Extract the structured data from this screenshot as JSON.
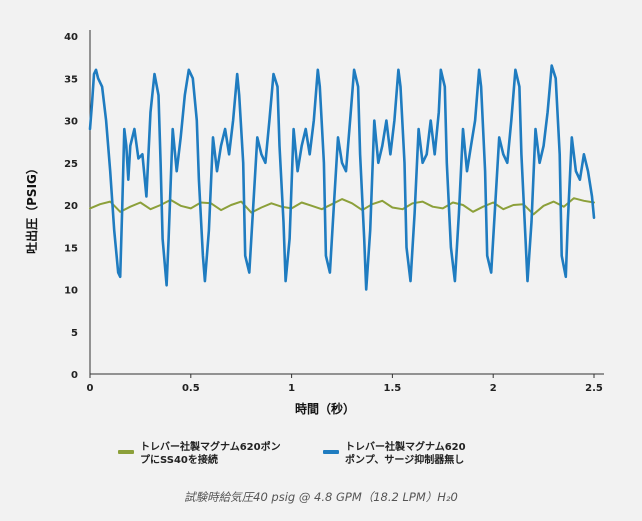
{
  "chart_data": {
    "type": "line",
    "xlabel": "時間（秒）",
    "ylabel": "吐出圧（PSIG）",
    "xlim": [
      0,
      2.5
    ],
    "ylim": [
      0,
      40
    ],
    "xticks": [
      "0",
      "0.5",
      "1",
      "1.5",
      "2",
      "2.5"
    ],
    "yticks": [
      "0",
      "5",
      "10",
      "15",
      "20",
      "25",
      "30",
      "35",
      "40"
    ],
    "grid": false,
    "legend_position": "bottom",
    "series": [
      {
        "name": "トレバー社製マグナム620ポンプにSS40を接続",
        "color": "#8ca03a",
        "x": [
          0,
          0.05,
          0.1,
          0.15,
          0.2,
          0.25,
          0.3,
          0.35,
          0.4,
          0.45,
          0.5,
          0.55,
          0.6,
          0.65,
          0.7,
          0.75,
          0.8,
          0.85,
          0.9,
          0.95,
          1.0,
          1.05,
          1.1,
          1.15,
          1.2,
          1.25,
          1.3,
          1.35,
          1.4,
          1.45,
          1.5,
          1.55,
          1.6,
          1.65,
          1.7,
          1.75,
          1.8,
          1.85,
          1.9,
          1.95,
          2.0,
          2.05,
          2.1,
          2.15,
          2.2,
          2.25,
          2.3,
          2.35,
          2.4,
          2.45,
          2.5
        ],
        "values": [
          19.6,
          20.1,
          20.4,
          19.2,
          19.8,
          20.3,
          19.5,
          20.0,
          20.6,
          19.9,
          19.6,
          20.3,
          20.2,
          19.4,
          20.0,
          20.4,
          19.1,
          19.7,
          20.2,
          19.8,
          19.6,
          20.3,
          19.9,
          19.5,
          20.1,
          20.7,
          20.2,
          19.4,
          20.1,
          20.5,
          19.7,
          19.5,
          20.2,
          20.4,
          19.8,
          19.6,
          20.3,
          20.0,
          19.2,
          19.8,
          20.3,
          19.5,
          20.0,
          20.1,
          18.9,
          19.9,
          20.4,
          19.8,
          20.8,
          20.5,
          20.3
        ]
      },
      {
        "name": "トレバー社製マグナム620ポンプ、サージ抑制器無し",
        "color": "#1f7cc0",
        "x": [
          0,
          0.01,
          0.02,
          0.03,
          0.04,
          0.06,
          0.08,
          0.1,
          0.12,
          0.14,
          0.15,
          0.16,
          0.17,
          0.18,
          0.19,
          0.2,
          0.22,
          0.24,
          0.26,
          0.28,
          0.3,
          0.32,
          0.34,
          0.35,
          0.36,
          0.38,
          0.39,
          0.41,
          0.43,
          0.45,
          0.47,
          0.49,
          0.51,
          0.53,
          0.54,
          0.56,
          0.57,
          0.59,
          0.61,
          0.63,
          0.65,
          0.67,
          0.69,
          0.71,
          0.73,
          0.74,
          0.76,
          0.77,
          0.79,
          0.81,
          0.83,
          0.85,
          0.87,
          0.89,
          0.91,
          0.93,
          0.94,
          0.96,
          0.97,
          0.99,
          1.01,
          1.03,
          1.05,
          1.07,
          1.09,
          1.11,
          1.13,
          1.14,
          1.16,
          1.17,
          1.19,
          1.21,
          1.23,
          1.25,
          1.27,
          1.29,
          1.31,
          1.33,
          1.34,
          1.36,
          1.37,
          1.39,
          1.41,
          1.43,
          1.45,
          1.47,
          1.49,
          1.51,
          1.53,
          1.54,
          1.56,
          1.57,
          1.59,
          1.61,
          1.63,
          1.65,
          1.67,
          1.69,
          1.71,
          1.73,
          1.74,
          1.76,
          1.77,
          1.79,
          1.81,
          1.83,
          1.85,
          1.87,
          1.89,
          1.91,
          1.93,
          1.94,
          1.96,
          1.97,
          1.99,
          2.01,
          2.03,
          2.05,
          2.07,
          2.09,
          2.11,
          2.13,
          2.14,
          2.16,
          2.17,
          2.19,
          2.21,
          2.23,
          2.25,
          2.27,
          2.29,
          2.31,
          2.33,
          2.34,
          2.36,
          2.37,
          2.39,
          2.41,
          2.43,
          2.45,
          2.47,
          2.49,
          2.5
        ],
        "values": [
          29.0,
          32.0,
          35.5,
          36.0,
          35.0,
          34.0,
          30.0,
          24.0,
          17.0,
          12.0,
          11.5,
          20.0,
          29.0,
          27.0,
          23.0,
          27.0,
          29.0,
          25.5,
          26.0,
          21.0,
          31.0,
          35.5,
          33.0,
          25.0,
          16.0,
          10.5,
          16.0,
          29.0,
          24.0,
          28.0,
          33.0,
          36.0,
          35.0,
          30.0,
          23.0,
          14.0,
          11.0,
          17.0,
          28.0,
          24.0,
          27.0,
          29.0,
          26.0,
          30.0,
          35.5,
          33.0,
          25.0,
          14.0,
          12.0,
          20.0,
          28.0,
          26.0,
          25.0,
          30.0,
          35.5,
          34.0,
          27.0,
          18.0,
          11.0,
          16.0,
          29.0,
          24.0,
          27.0,
          29.0,
          26.0,
          30.0,
          36.0,
          34.0,
          25.0,
          14.0,
          12.0,
          20.0,
          28.0,
          25.0,
          24.0,
          30.0,
          36.0,
          34.0,
          26.0,
          16.0,
          10.0,
          17.0,
          30.0,
          25.0,
          27.0,
          30.0,
          26.0,
          30.0,
          36.0,
          34.0,
          25.0,
          15.0,
          11.0,
          19.0,
          29.0,
          25.0,
          26.0,
          30.0,
          26.0,
          31.0,
          36.0,
          34.0,
          25.0,
          15.0,
          11.0,
          19.0,
          29.0,
          24.0,
          27.0,
          30.0,
          36.0,
          34.0,
          24.0,
          14.0,
          12.0,
          20.0,
          28.0,
          26.0,
          25.0,
          30.0,
          36.0,
          34.0,
          26.0,
          16.0,
          11.0,
          18.0,
          29.0,
          25.0,
          27.0,
          31.0,
          36.5,
          35.0,
          26.0,
          14.0,
          11.5,
          18.0,
          28.0,
          24.0,
          23.0,
          26.0,
          24.0,
          21.0,
          18.5
        ]
      }
    ]
  },
  "legend": {
    "item1": "トレバー社製マグナム620ポン\nプにSS40を接続",
    "item2": "トレバー社製マグナム620\nポンプ、サージ抑制器無し"
  },
  "caption": "試験時給気圧40 psig @ 4.8 GPM（18.2 LPM）H₂0"
}
